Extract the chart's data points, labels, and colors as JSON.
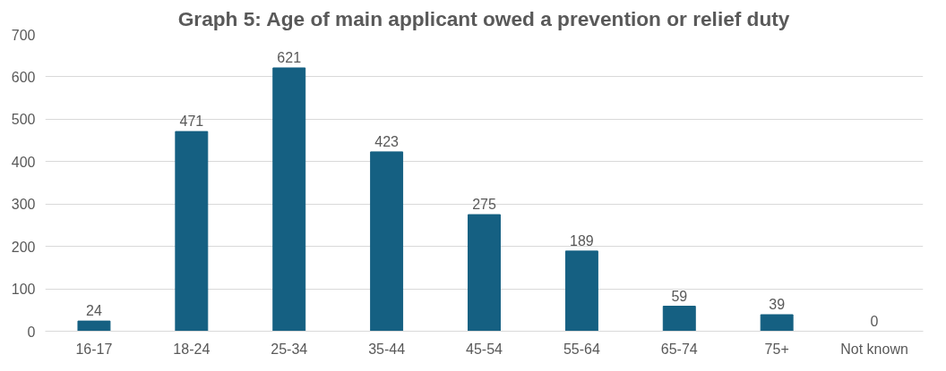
{
  "chart_data": {
    "type": "bar",
    "title": "Graph 5: Age of main applicant owed a prevention or relief duty",
    "categories": [
      "16-17",
      "18-24",
      "25-34",
      "35-44",
      "45-54",
      "55-64",
      "65-74",
      "75+",
      "Not known"
    ],
    "values": [
      24,
      471,
      621,
      423,
      275,
      189,
      59,
      39,
      0
    ],
    "color": "#156082",
    "ylim": [
      0,
      700
    ],
    "yticks": [
      0,
      100,
      200,
      300,
      400,
      500,
      600,
      700
    ],
    "grid": "y",
    "data_labels": true
  }
}
